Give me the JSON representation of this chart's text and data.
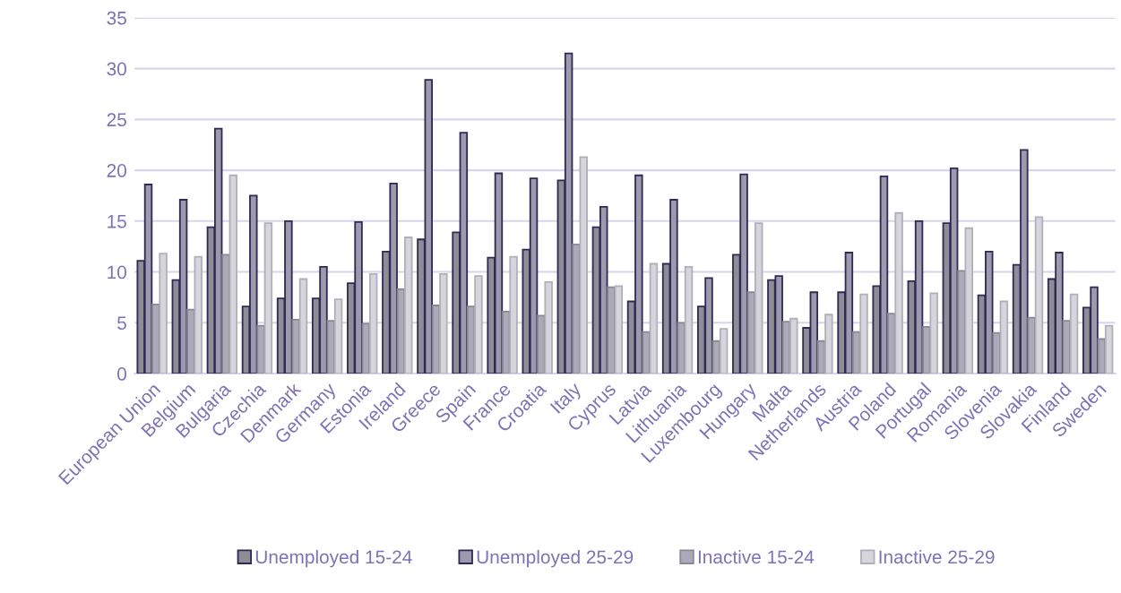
{
  "chart_data": {
    "type": "bar",
    "categories": [
      "European Union",
      "Belgium",
      "Bulgaria",
      "Czechia",
      "Denmark",
      "Germany",
      "Estonia",
      "Ireland",
      "Greece",
      "Spain",
      "France",
      "Croatia",
      "Italy",
      "Cyprus",
      "Latvia",
      "Lithuania",
      "Luxembourg",
      "Hungary",
      "Malta",
      "Netherlands",
      "Austria",
      "Poland",
      "Portugal",
      "Romania",
      "Slovenia",
      "Slovakia",
      "Finland",
      "Sweden"
    ],
    "series": [
      {
        "name": "Unemployed 15-24",
        "color": "#8e8d96",
        "values": [
          11.1,
          9.2,
          14.4,
          6.6,
          7.4,
          7.4,
          8.9,
          12.0,
          13.2,
          13.9,
          11.4,
          12.2,
          19.0,
          14.4,
          7.1,
          10.8,
          6.6,
          11.7,
          9.2,
          4.5,
          8.0,
          8.6,
          9.1,
          14.8,
          7.7,
          10.7,
          9.3,
          6.5
        ]
      },
      {
        "name": "Unemployed 25-29",
        "color": "#9c9aac",
        "values": [
          18.6,
          17.1,
          24.1,
          17.5,
          15.0,
          10.5,
          14.9,
          18.7,
          28.9,
          23.7,
          19.7,
          19.2,
          31.5,
          16.4,
          19.5,
          17.1,
          9.4,
          19.6,
          9.6,
          8.0,
          11.9,
          19.4,
          15.0,
          20.2,
          12.0,
          22.0,
          11.9,
          8.5
        ]
      },
      {
        "name": "Inactive 15-24",
        "color": "#acaab8",
        "values": [
          6.8,
          6.3,
          11.7,
          4.7,
          5.3,
          5.2,
          4.9,
          8.3,
          6.7,
          6.6,
          6.1,
          5.7,
          12.7,
          8.5,
          4.1,
          5.0,
          3.2,
          8.0,
          5.1,
          3.2,
          4.1,
          5.9,
          4.6,
          10.1,
          4.0,
          5.5,
          5.2,
          3.4
        ]
      },
      {
        "name": "Inactive 25-29",
        "color": "#d6d5dc",
        "values": [
          11.8,
          11.5,
          19.5,
          14.8,
          9.3,
          7.3,
          9.8,
          13.4,
          9.8,
          9.6,
          11.5,
          9.0,
          21.3,
          8.6,
          10.8,
          10.5,
          4.4,
          14.8,
          5.4,
          5.8,
          7.8,
          15.8,
          7.9,
          14.3,
          7.1,
          15.4,
          7.8,
          4.7
        ]
      }
    ],
    "ylim": [
      0,
      35
    ],
    "yticks": [
      0,
      5,
      10,
      15,
      20,
      25,
      30,
      35
    ],
    "grid": "y",
    "legend": "bottom"
  }
}
